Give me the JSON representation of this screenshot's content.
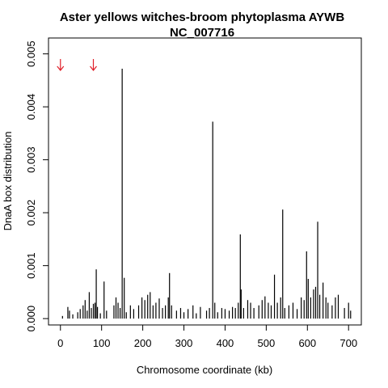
{
  "chart_data": {
    "type": "spikes",
    "title": "Aster yellows witches-broom phytoplasma AYWB",
    "subtitle": "NC_007716",
    "x_label": "Chromosome coordinate (kb)",
    "y_label": "DnaA box distribution",
    "color": "#000000",
    "arrows": [
      0,
      80
    ],
    "arrow_color": "#e0202a",
    "xlim": [
      -29,
      731
    ],
    "ylim": [
      -0.00012,
      0.0053
    ],
    "xticks": [
      0,
      100,
      200,
      300,
      400,
      500,
      600,
      700
    ],
    "yticks": [
      {
        "value": 0,
        "label": "0.000"
      },
      {
        "value": 0.001,
        "label": "0.001"
      },
      {
        "value": 0.002,
        "label": "0.002"
      },
      {
        "value": 0.003,
        "label": "0.003"
      },
      {
        "value": 0.004,
        "label": "0.004"
      },
      {
        "value": 0.005,
        "label": "0.005"
      }
    ],
    "x": [
      5,
      18,
      22,
      30,
      42,
      48,
      55,
      60,
      65,
      70,
      75,
      80,
      84,
      87,
      90,
      97,
      106,
      112,
      130,
      135,
      140,
      145,
      150,
      155,
      160,
      170,
      178,
      190,
      198,
      205,
      212,
      218,
      225,
      232,
      240,
      248,
      255,
      262,
      265,
      270,
      282,
      292,
      300,
      310,
      322,
      330,
      340,
      355,
      362,
      370,
      375,
      382,
      392,
      400,
      410,
      418,
      425,
      432,
      437,
      439,
      445,
      455,
      462,
      470,
      482,
      490,
      497,
      505,
      512,
      520,
      527,
      535,
      540,
      545,
      555,
      565,
      575,
      585,
      592,
      598,
      602,
      608,
      615,
      620,
      625,
      630,
      638,
      645,
      650,
      660,
      668,
      675,
      690,
      700,
      705
    ],
    "values": [
      5e-05,
      0.00022,
      0.00015,
      8e-05,
      0.00012,
      0.00018,
      0.00025,
      0.00035,
      0.00015,
      0.0005,
      0.0002,
      0.00028,
      0.0003,
      0.00093,
      0.00022,
      0.0001,
      0.0007,
      0.00015,
      0.00025,
      0.0004,
      0.0003,
      0.0002,
      0.00472,
      0.00077,
      0.00012,
      0.00025,
      0.00018,
      0.00025,
      0.0004,
      0.00035,
      0.00045,
      0.0005,
      0.00025,
      0.0003,
      0.00038,
      0.0002,
      0.00025,
      0.0004,
      0.00086,
      0.00025,
      0.00015,
      0.0002,
      0.00012,
      0.00018,
      0.00025,
      0.0001,
      0.00022,
      0.00015,
      0.0002,
      0.00372,
      0.0003,
      0.00012,
      0.0002,
      0.00018,
      0.00015,
      0.00022,
      0.0002,
      0.0003,
      0.00159,
      0.00055,
      0.0002,
      0.00035,
      0.0003,
      0.0002,
      0.00025,
      0.00035,
      0.00042,
      0.0003,
      0.00025,
      0.00083,
      0.0003,
      0.0004,
      0.00206,
      0.0002,
      0.00025,
      0.0003,
      0.00018,
      0.0004,
      0.00035,
      0.00127,
      0.00075,
      0.0004,
      0.00055,
      0.0006,
      0.00183,
      0.00045,
      0.00068,
      0.0004,
      0.0003,
      0.00025,
      0.0004,
      0.00045,
      0.0002,
      0.0003,
      0.00015
    ]
  }
}
